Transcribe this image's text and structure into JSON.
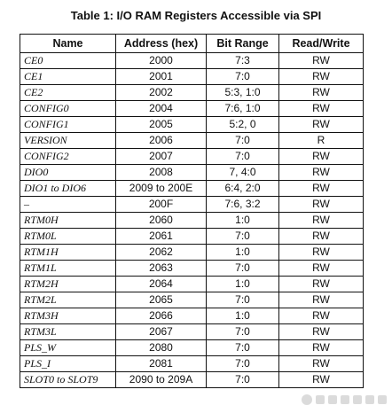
{
  "caption": "Table 1: I/O RAM Registers Accessible via SPI",
  "headers": {
    "name": "Name",
    "address": "Address (hex)",
    "bits": "Bit Range",
    "rw": "Read/Write"
  },
  "rows": [
    {
      "name": "CE0",
      "address": "2000",
      "bits": "7:3",
      "rw": "RW"
    },
    {
      "name": "CE1",
      "address": "2001",
      "bits": "7:0",
      "rw": "RW"
    },
    {
      "name": "CE2",
      "address": "2002",
      "bits": "5:3, 1:0",
      "rw": "RW"
    },
    {
      "name": "CONFIG0",
      "address": "2004",
      "bits": "7:6, 1:0",
      "rw": "RW"
    },
    {
      "name": "CONFIG1",
      "address": "2005",
      "bits": "5:2, 0",
      "rw": "RW"
    },
    {
      "name": "VERSION",
      "address": "2006",
      "bits": "7:0",
      "rw": "R"
    },
    {
      "name": "CONFIG2",
      "address": "2007",
      "bits": "7:0",
      "rw": "RW"
    },
    {
      "name": "DIO0",
      "address": "2008",
      "bits": "7, 4:0",
      "rw": "RW"
    },
    {
      "name": "DIO1 to DIO6",
      "address": "2009 to 200E",
      "bits": "6:4, 2:0",
      "rw": "RW"
    },
    {
      "name": "–",
      "address": "200F",
      "bits": "7:6, 3:2",
      "rw": "RW"
    },
    {
      "name": "RTM0H",
      "address": "2060",
      "bits": "1:0",
      "rw": "RW"
    },
    {
      "name": "RTM0L",
      "address": "2061",
      "bits": "7:0",
      "rw": "RW"
    },
    {
      "name": "RTM1H",
      "address": "2062",
      "bits": "1:0",
      "rw": "RW"
    },
    {
      "name": "RTM1L",
      "address": "2063",
      "bits": "7:0",
      "rw": "RW"
    },
    {
      "name": "RTM2H",
      "address": "2064",
      "bits": "1:0",
      "rw": "RW"
    },
    {
      "name": "RTM2L",
      "address": "2065",
      "bits": "7:0",
      "rw": "RW"
    },
    {
      "name": "RTM3H",
      "address": "2066",
      "bits": "1:0",
      "rw": "RW"
    },
    {
      "name": "RTM3L",
      "address": "2067",
      "bits": "7:0",
      "rw": "RW"
    },
    {
      "name": "PLS_W",
      "address": "2080",
      "bits": "7:0",
      "rw": "RW"
    },
    {
      "name": "PLS_I",
      "address": "2081",
      "bits": "7:0",
      "rw": "RW"
    },
    {
      "name": "SLOT0 to SLOT9",
      "address": "2090 to 209A",
      "bits": "7:0",
      "rw": "RW"
    }
  ],
  "watermark_icon": "site-watermark-icon"
}
